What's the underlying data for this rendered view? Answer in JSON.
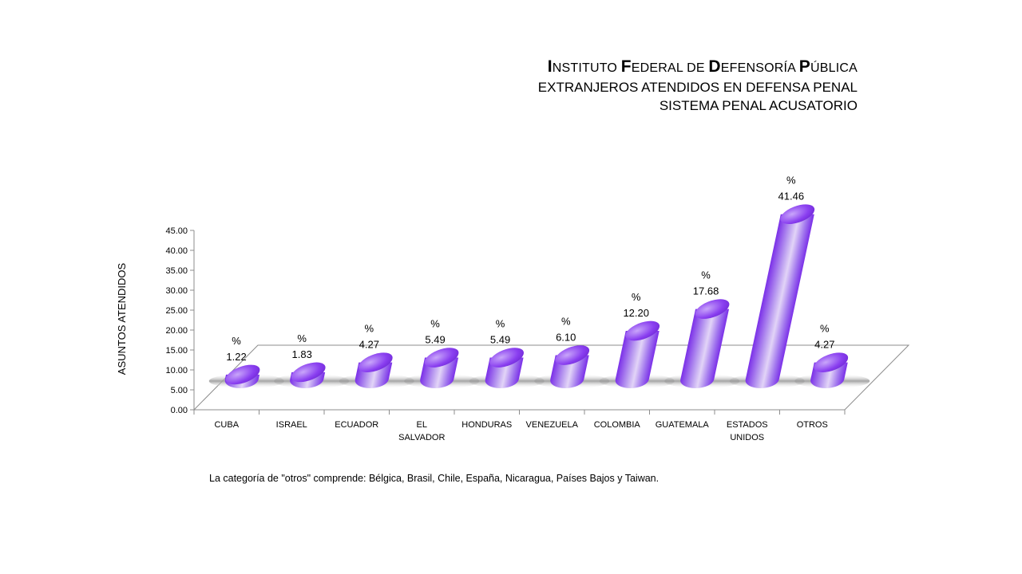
{
  "title": {
    "line1": "Instituto Federal de Defensoría Pública",
    "line2": "EXTRANJEROS ATENDIDOS EN DEFENSA PENAL",
    "line3": "SISTEMA PENAL ACUSATORIO"
  },
  "footnote": "La categoría de \"otros\" comprende: Bélgica, Brasil, Chile, España, Nicaragua, Países Bajos y Taiwan.",
  "chart_data": {
    "type": "bar",
    "style": "3d-cylinder",
    "ylabel": "ASUNTOS ATENDIDOS",
    "ylim": [
      0,
      45
    ],
    "yticks": [
      "0.00",
      "5.00",
      "10.00",
      "15.00",
      "20.00",
      "25.00",
      "30.00",
      "35.00",
      "40.00",
      "45.00"
    ],
    "categories": [
      [
        "CUBA"
      ],
      [
        "ISRAEL"
      ],
      [
        "ECUADOR"
      ],
      [
        "EL",
        "SALVADOR"
      ],
      [
        "HONDURAS"
      ],
      [
        "VENEZUELA"
      ],
      [
        "COLOMBIA"
      ],
      [
        "GUATEMALA"
      ],
      [
        "ESTADOS",
        "UNIDOS"
      ],
      [
        "OTROS"
      ]
    ],
    "values": [
      1.22,
      1.83,
      4.27,
      5.49,
      5.49,
      6.1,
      12.2,
      17.68,
      41.46,
      4.27
    ],
    "data_labels": [
      "1.22",
      "1.83",
      "4.27",
      "5.49",
      "5.49",
      "6.10",
      "12.20",
      "17.68",
      "41.46",
      "4.27"
    ],
    "label_prefix": "%",
    "bar_color": "#8a3ff0",
    "bar_highlight": "#e2d4f7",
    "grid": false,
    "legend": "none"
  }
}
